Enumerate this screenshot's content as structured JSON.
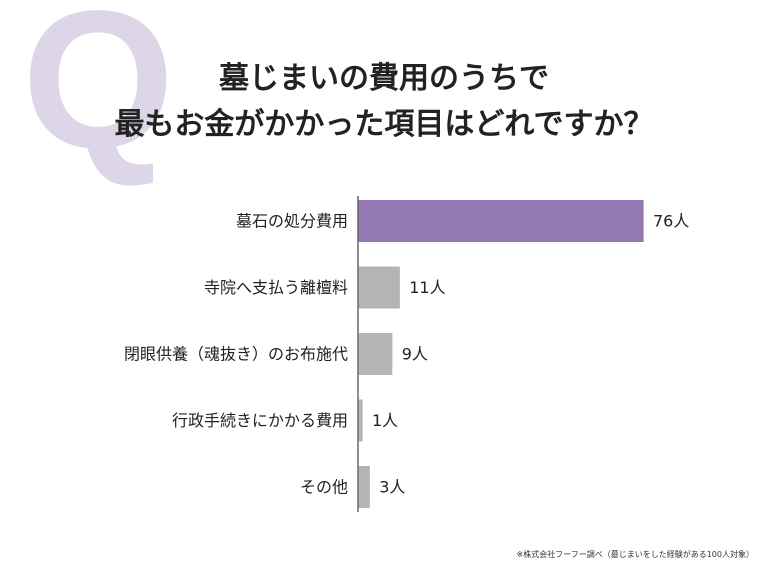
{
  "decor": {
    "q_letter": "Q",
    "q_color": "#ddd5e8"
  },
  "title": {
    "line1": "墓じまいの費用のうちで",
    "line2": "最もお金がかかった項目はどれですか？"
  },
  "footnote": "※株式会社フーフー調べ（墓じまいをした経験がある100人対象）",
  "colors": {
    "highlight_bar": "#9378b1",
    "normal_bar": "#b4b4b4",
    "axis": "#444444",
    "label": "#222222"
  },
  "chart_data": {
    "type": "bar",
    "orientation": "horizontal",
    "categories": [
      "墓石の処分費用",
      "寺院へ支払う離檀料",
      "閉眼供養（魂抜き）のお布施代",
      "行政手続きにかかる費用",
      "その他"
    ],
    "values": [
      76,
      11,
      9,
      1,
      3
    ],
    "value_labels": [
      "76人",
      "11人",
      "9人",
      "1人",
      "3人"
    ],
    "highlight_index": 0,
    "xlim": [
      0,
      100
    ],
    "grid": false,
    "legend": "none"
  }
}
